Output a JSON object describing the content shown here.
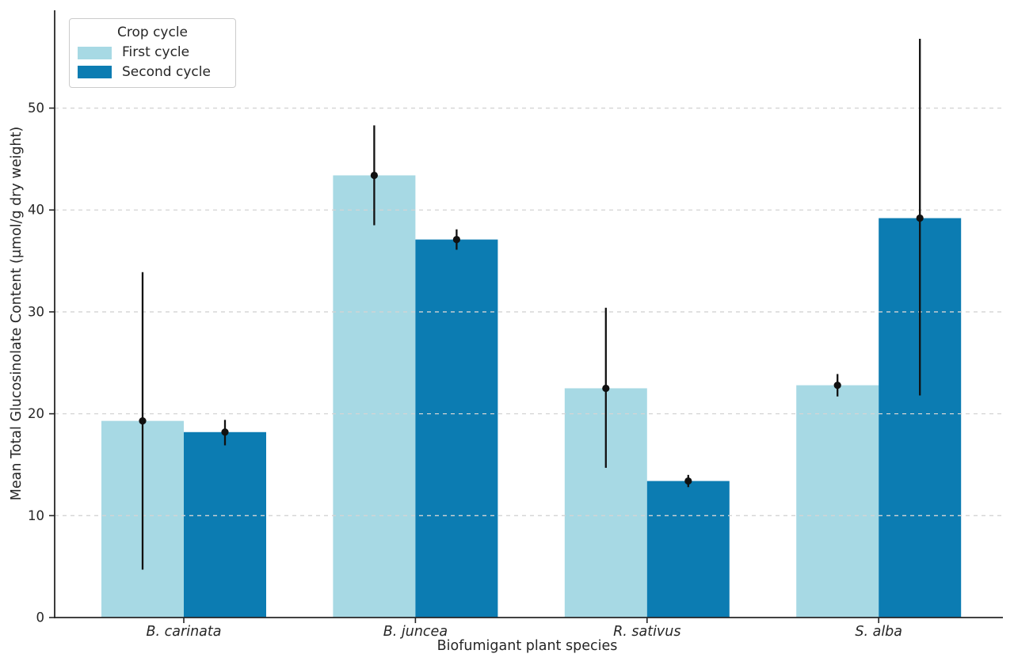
{
  "chart_data": {
    "type": "bar",
    "title": "",
    "xlabel": "Biofumigant plant species",
    "ylabel": "Mean Total Glucosinolate Content (μmol/g dry weight)",
    "categories": [
      "B. carinata",
      "B. juncea",
      "R. sativus",
      "S. alba"
    ],
    "categories_style": "italic",
    "series": [
      {
        "name": "First cycle",
        "color": "#a7d9e4",
        "values": [
          19.3,
          43.4,
          22.5,
          22.8
        ],
        "error_low": [
          4.7,
          38.5,
          14.7,
          21.7
        ],
        "error_high": [
          33.9,
          48.3,
          30.4,
          23.9
        ]
      },
      {
        "name": "Second cycle",
        "color": "#0c7cb2",
        "values": [
          18.2,
          37.1,
          13.4,
          39.2
        ],
        "error_low": [
          16.9,
          36.1,
          12.8,
          21.8
        ],
        "error_high": [
          19.4,
          38.1,
          14.0,
          56.8
        ]
      }
    ],
    "yticks": [
      0,
      10,
      20,
      30,
      40,
      50
    ],
    "ylim": [
      0,
      59.6
    ],
    "grid": "horizontal-dashed",
    "grid_color": "#d4d4d4",
    "axis_color": "#262626",
    "error_bar_color": "#111111",
    "legend": {
      "title": "Crop cycle",
      "position": "upper-left"
    }
  }
}
